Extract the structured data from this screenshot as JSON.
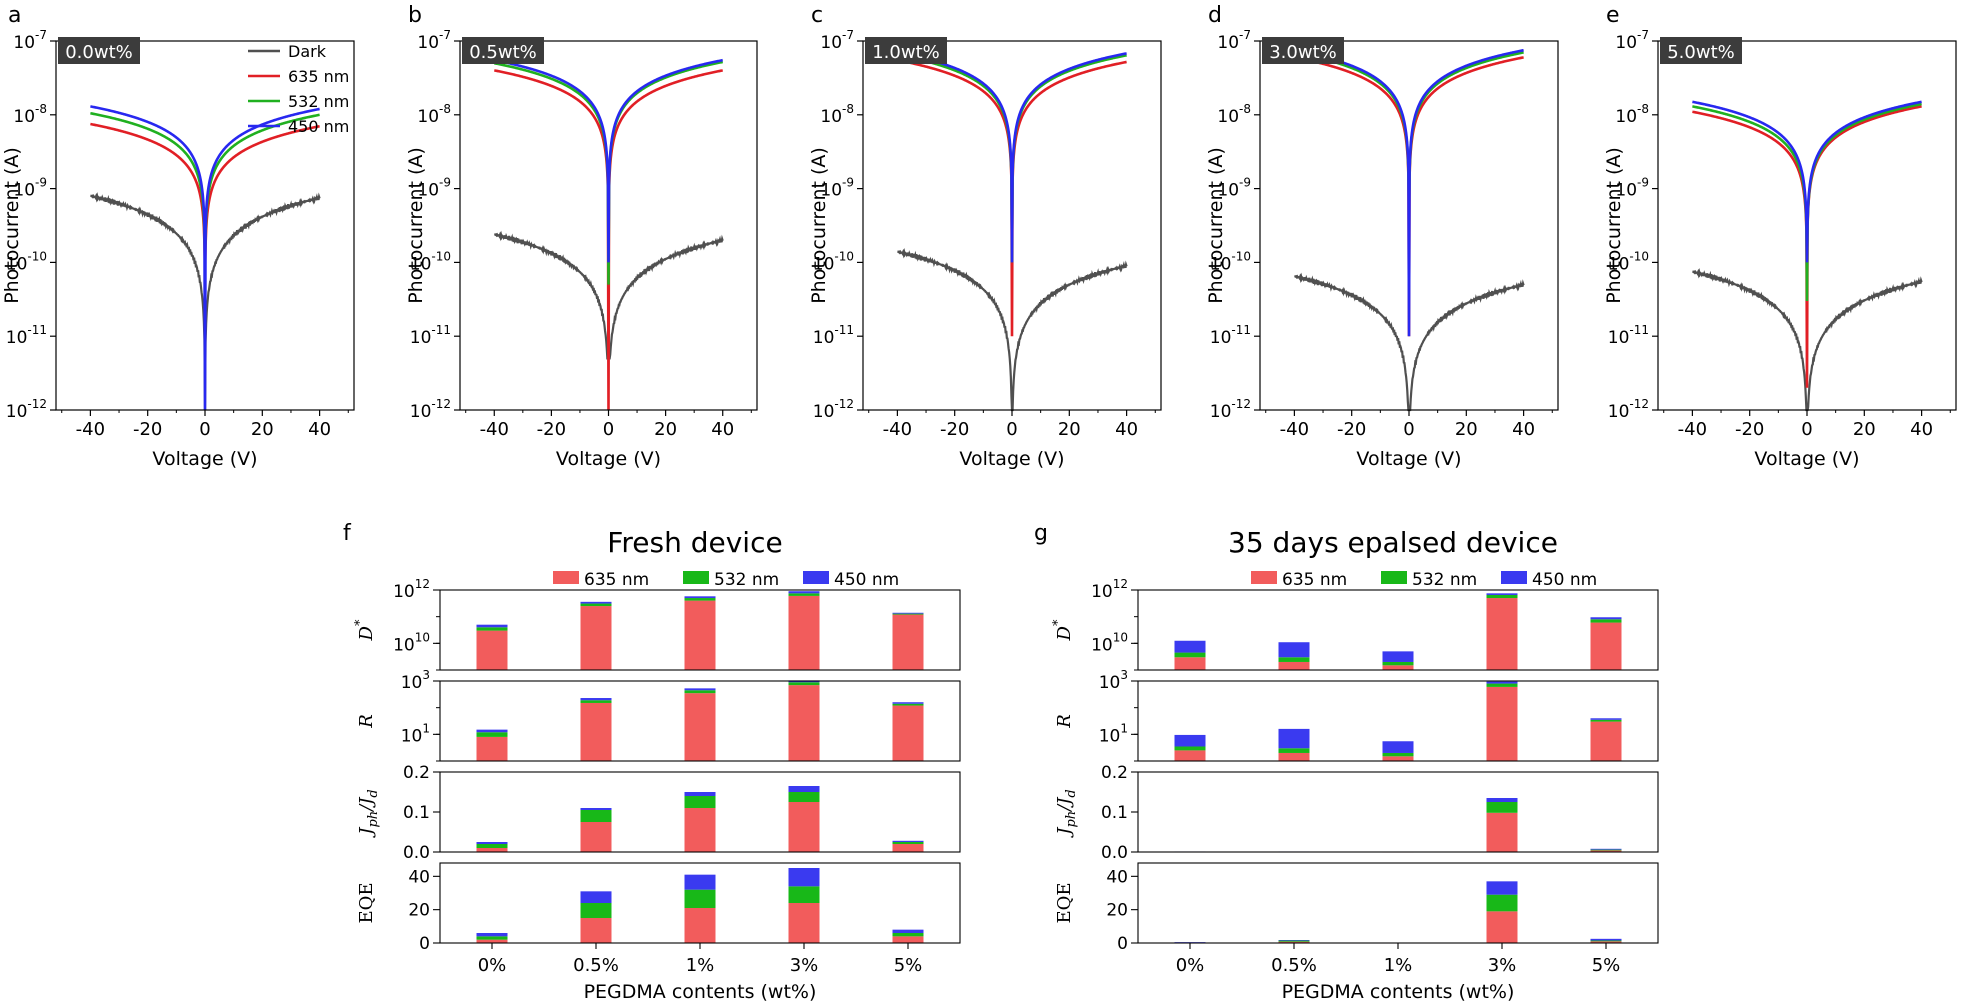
{
  "colors": {
    "dark": "#505050",
    "nm635": "#e11f25",
    "nm532": "#20b020",
    "nm450": "#2828f0",
    "bar635": "#f25c5c",
    "bar532": "#18b818",
    "bar450": "#3a3af0",
    "badge_bg": "#3c3c3c",
    "badge_fg": "#ffffff"
  },
  "chart_data": [
    {
      "id": "a",
      "type": "line",
      "badge": "0.0wt%",
      "xlabel": "Voltage (V)",
      "ylabel": "Photocurrent (A)",
      "xlim": [
        -52,
        52
      ],
      "xticks": [
        -40,
        -20,
        0,
        20,
        40
      ],
      "yscale": "log",
      "ylim_exp": [
        -12,
        -7
      ],
      "ytick_base": "10",
      "legend": {
        "position": "top-right",
        "entries": [
          "Dark",
          "635 nm",
          "532 nm",
          "450 nm"
        ]
      },
      "curves": [
        {
          "name": "Dark",
          "color_key": "dark",
          "end_neg": 8e-10,
          "end_pos": 7.5e-10,
          "min": 1e-12
        },
        {
          "name": "635 nm",
          "color_key": "nm635",
          "end_neg": 7.5e-09,
          "end_pos": 7e-09,
          "min": 8e-11
        },
        {
          "name": "532 nm",
          "color_key": "nm532",
          "end_neg": 1.05e-08,
          "end_pos": 1e-08,
          "min": 1e-10
        },
        {
          "name": "450 nm",
          "color_key": "nm450",
          "end_neg": 1.3e-08,
          "end_pos": 1.2e-08,
          "min": 1e-12
        }
      ]
    },
    {
      "id": "b",
      "type": "line",
      "badge": "0.5wt%",
      "xlabel": "Voltage (V)",
      "ylabel": "Photocurrent (A)",
      "xlim": [
        -52,
        52
      ],
      "xticks": [
        -40,
        -20,
        0,
        20,
        40
      ],
      "yscale": "log",
      "ylim_exp": [
        -12,
        -7
      ],
      "ytick_base": "10",
      "curves": [
        {
          "name": "Dark",
          "color_key": "dark",
          "end_neg": 2.4e-10,
          "end_pos": 2e-10,
          "min": 5e-12
        },
        {
          "name": "635 nm",
          "color_key": "nm635",
          "end_neg": 4e-08,
          "end_pos": 4e-08,
          "min": 1e-12
        },
        {
          "name": "532 nm",
          "color_key": "nm532",
          "end_neg": 5e-08,
          "end_pos": 5.2e-08,
          "min": 5e-11
        },
        {
          "name": "450 nm",
          "color_key": "nm450",
          "end_neg": 5.5e-08,
          "end_pos": 5.5e-08,
          "min": 1e-10
        }
      ]
    },
    {
      "id": "c",
      "type": "line",
      "badge": "1.0wt%",
      "xlabel": "Voltage (V)",
      "ylabel": "Photocurrent (A)",
      "xlim": [
        -52,
        52
      ],
      "xticks": [
        -40,
        -20,
        0,
        20,
        40
      ],
      "yscale": "log",
      "ylim_exp": [
        -12,
        -7
      ],
      "ytick_base": "10",
      "curves": [
        {
          "name": "Dark",
          "color_key": "dark",
          "end_neg": 1.4e-10,
          "end_pos": 9e-11,
          "min": 1e-12
        },
        {
          "name": "635 nm",
          "color_key": "nm635",
          "end_neg": 5.5e-08,
          "end_pos": 5.2e-08,
          "min": 1e-11
        },
        {
          "name": "532 nm",
          "color_key": "nm532",
          "end_neg": 6.5e-08,
          "end_pos": 6.4e-08,
          "min": 1e-10
        },
        {
          "name": "450 nm",
          "color_key": "nm450",
          "end_neg": 7e-08,
          "end_pos": 6.8e-08,
          "min": 1e-10
        }
      ]
    },
    {
      "id": "d",
      "type": "line",
      "badge": "3.0wt%",
      "xlabel": "Voltage (V)",
      "ylabel": "Photocurrent (A)",
      "xlim": [
        -52,
        52
      ],
      "xticks": [
        -40,
        -20,
        0,
        20,
        40
      ],
      "yscale": "log",
      "ylim_exp": [
        -12,
        -7
      ],
      "ytick_base": "10",
      "curves": [
        {
          "name": "Dark",
          "color_key": "dark",
          "end_neg": 6.5e-11,
          "end_pos": 5e-11,
          "min": 1e-12
        },
        {
          "name": "635 nm",
          "color_key": "nm635",
          "end_neg": 6e-08,
          "end_pos": 6e-08,
          "min": 1e-11
        },
        {
          "name": "532 nm",
          "color_key": "nm532",
          "end_neg": 7e-08,
          "end_pos": 7e-08,
          "min": 5e-10
        },
        {
          "name": "450 nm",
          "color_key": "nm450",
          "end_neg": 7.5e-08,
          "end_pos": 7.5e-08,
          "min": 1e-11
        }
      ]
    },
    {
      "id": "e",
      "type": "line",
      "badge": "5.0wt%",
      "xlabel": "Voltage (V)",
      "ylabel": "Photocurrent (A)",
      "xlim": [
        -52,
        52
      ],
      "xticks": [
        -40,
        -20,
        0,
        20,
        40
      ],
      "yscale": "log",
      "ylim_exp": [
        -12,
        -7
      ],
      "ytick_base": "10",
      "curves": [
        {
          "name": "Dark",
          "color_key": "dark",
          "end_neg": 7.5e-11,
          "end_pos": 5.5e-11,
          "min": 1e-12
        },
        {
          "name": "635 nm",
          "color_key": "nm635",
          "end_neg": 1.1e-08,
          "end_pos": 1.3e-08,
          "min": 2e-12
        },
        {
          "name": "532 nm",
          "color_key": "nm532",
          "end_neg": 1.3e-08,
          "end_pos": 1.4e-08,
          "min": 3e-11
        },
        {
          "name": "450 nm",
          "color_key": "nm450",
          "end_neg": 1.5e-08,
          "end_pos": 1.5e-08,
          "min": 1e-10
        }
      ]
    },
    {
      "id": "f",
      "type": "bar",
      "title": "Fresh device",
      "xlabel": "PEGDMA contents (wt%)",
      "categories": [
        "0%",
        "0.5%",
        "1%",
        "3%",
        "5%"
      ],
      "legend": [
        "635 nm",
        "532 nm",
        "450 nm"
      ],
      "stack_order": [
        "635 nm",
        "532 nm",
        "450 nm"
      ],
      "subplots": [
        {
          "metric": "D*",
          "ylabel": "D",
          "ylabel_sup": "*",
          "scale": "log",
          "ylim_exp": [
            9,
            12
          ],
          "ytick_exp": [
            10,
            12
          ],
          "series": [
            {
              "name": "635 nm",
              "values": [
                30000000000.0,
                250000000000.0,
                400000000000.0,
                600000000000.0,
                120000000000.0
              ]
            },
            {
              "name": "532 nm",
              "values": [
                10000000000.0,
                60000000000.0,
                100000000000.0,
                150000000000.0,
                10000000000.0
              ]
            },
            {
              "name": "450 nm",
              "values": [
                10000000000.0,
                50000000000.0,
                80000000000.0,
                150000000000.0,
                10000000000.0
              ]
            }
          ]
        },
        {
          "metric": "R",
          "ylabel": "R",
          "scale": "log",
          "ylim_exp": [
            0,
            3
          ],
          "ytick_exp": [
            1,
            3
          ],
          "series": [
            {
              "name": "635 nm",
              "values": [
                8,
                150,
                350,
                700,
                120
              ]
            },
            {
              "name": "532 nm",
              "values": [
                4,
                40,
                100,
                200,
                20
              ]
            },
            {
              "name": "450 nm",
              "values": [
                3,
                40,
                80,
                150,
                20
              ]
            }
          ]
        },
        {
          "metric": "Jph/Jd",
          "ylabel": "J",
          "ylabel_sub1": "ph",
          "ylabel_sub2": "d",
          "scale": "linear",
          "ylim": [
            0,
            0.2
          ],
          "yticks": [
            "0.0",
            "0.1",
            "0.2"
          ],
          "series": [
            {
              "name": "635 nm",
              "values": [
                0.01,
                0.075,
                0.11,
                0.125,
                0.02
              ]
            },
            {
              "name": "532 nm",
              "values": [
                0.01,
                0.03,
                0.03,
                0.025,
                0.005
              ]
            },
            {
              "name": "450 nm",
              "values": [
                0.005,
                0.005,
                0.01,
                0.015,
                0.003
              ]
            }
          ]
        },
        {
          "metric": "EQE",
          "ylabel": "EQE",
          "scale": "linear",
          "ylim": [
            0,
            48
          ],
          "yticks": [
            "0",
            "20",
            "40"
          ],
          "series": [
            {
              "name": "635 nm",
              "values": [
                2,
                15,
                21,
                24,
                4
              ]
            },
            {
              "name": "532 nm",
              "values": [
                2,
                9,
                11,
                10,
                2
              ]
            },
            {
              "name": "450 nm",
              "values": [
                2,
                7,
                9,
                11,
                2
              ]
            }
          ]
        }
      ]
    },
    {
      "id": "g",
      "type": "bar",
      "title": "35 days epalsed device",
      "xlabel": "PEGDMA contents (wt%)",
      "categories": [
        "0%",
        "0.5%",
        "1%",
        "3%",
        "5%"
      ],
      "legend": [
        "635 nm",
        "532 nm",
        "450 nm"
      ],
      "stack_order": [
        "635 nm",
        "532 nm",
        "450 nm"
      ],
      "subplots": [
        {
          "metric": "D*",
          "ylabel": "D",
          "ylabel_sup": "*",
          "scale": "log",
          "ylim_exp": [
            9,
            12
          ],
          "ytick_exp": [
            10,
            12
          ],
          "series": [
            {
              "name": "635 nm",
              "values": [
                3000000000.0,
                2000000000.0,
                1500000000.0,
                500000000000.0,
                60000000000.0
              ]
            },
            {
              "name": "532 nm",
              "values": [
                1500000000.0,
                1000000000.0,
                500000000.0,
                150000000000.0,
                20000000000.0
              ]
            },
            {
              "name": "450 nm",
              "values": [
                8000000000.0,
                8000000000.0,
                3000000000.0,
                100000000000.0,
                15000000000.0
              ]
            }
          ]
        },
        {
          "metric": "R",
          "ylabel": "R",
          "scale": "log",
          "ylim_exp": [
            0,
            3
          ],
          "ytick_exp": [
            1,
            3
          ],
          "series": [
            {
              "name": "635 nm",
              "values": [
                2.5,
                2,
                1.5,
                600,
                30
              ]
            },
            {
              "name": "532 nm",
              "values": [
                1,
                1,
                0.5,
                200,
                5
              ]
            },
            {
              "name": "450 nm",
              "values": [
                6,
                13,
                3.5,
                150,
                5
              ]
            }
          ]
        },
        {
          "metric": "Jph/Jd",
          "ylabel": "J",
          "ylabel_sub1": "ph",
          "ylabel_sub2": "d",
          "scale": "linear",
          "ylim": [
            0,
            0.2
          ],
          "yticks": [
            "0.0",
            "0.1",
            "0.2"
          ],
          "series": [
            {
              "name": "635 nm",
              "values": [
                0.0005,
                0.0005,
                0.0002,
                0.098,
                0.004
              ]
            },
            {
              "name": "532 nm",
              "values": [
                0.0003,
                0.0003,
                0.0001,
                0.027,
                0.002
              ]
            },
            {
              "name": "450 nm",
              "values": [
                0.0005,
                0.0005,
                0.0002,
                0.01,
                0.002
              ]
            }
          ]
        },
        {
          "metric": "EQE",
          "ylabel": "EQE",
          "scale": "linear",
          "ylim": [
            0,
            48
          ],
          "yticks": [
            "0",
            "20",
            "40"
          ],
          "series": [
            {
              "name": "635 nm",
              "values": [
                0.2,
                0.8,
                0.1,
                19,
                1
              ]
            },
            {
              "name": "532 nm",
              "values": [
                0.1,
                0.8,
                0.05,
                10,
                0.5
              ]
            },
            {
              "name": "450 nm",
              "values": [
                0.2,
                0.2,
                0.05,
                8,
                1
              ]
            }
          ]
        }
      ]
    }
  ]
}
